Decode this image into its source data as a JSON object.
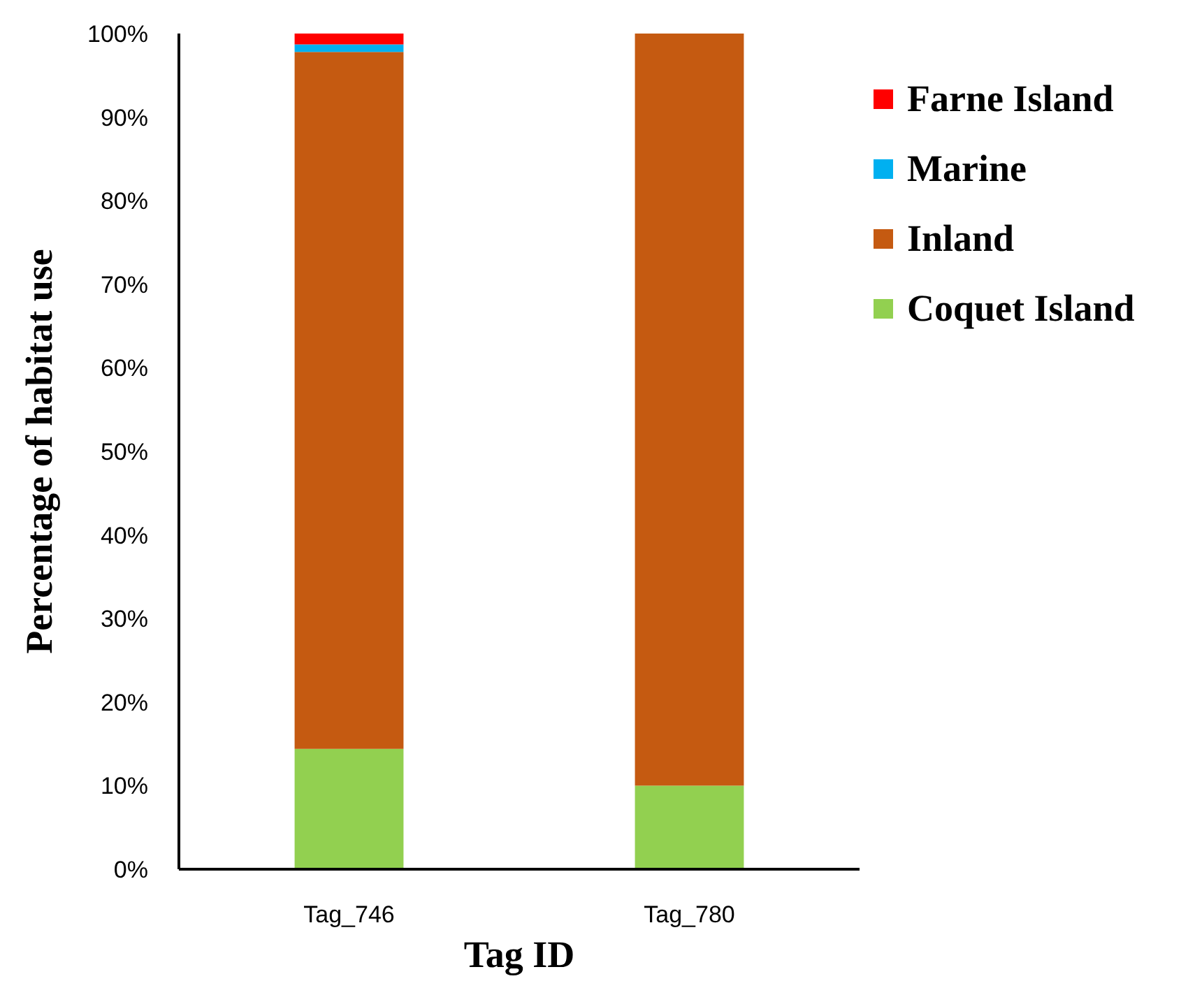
{
  "chart_data": {
    "type": "bar",
    "stacked": true,
    "xlabel": "Tag ID",
    "ylabel": "Percentage of habitat use",
    "categories": [
      "Tag_746",
      "Tag_780"
    ],
    "series": [
      {
        "name": "Coquet Island",
        "color": "#92d050",
        "values": [
          14.4,
          10.0
        ]
      },
      {
        "name": "Inland",
        "color": "#c55a11",
        "values": [
          83.4,
          90.0
        ]
      },
      {
        "name": "Marine",
        "color": "#00b0f0",
        "values": [
          0.9,
          0
        ]
      },
      {
        "name": "Farne Island",
        "color": "#ff0000",
        "values": [
          1.3,
          0
        ]
      }
    ],
    "ylim": [
      0,
      100
    ],
    "yticks": [
      {
        "value": 0,
        "label": "0%"
      },
      {
        "value": 10,
        "label": "10%"
      },
      {
        "value": 20,
        "label": "20%"
      },
      {
        "value": 30,
        "label": "30%"
      },
      {
        "value": 40,
        "label": "40%"
      },
      {
        "value": 50,
        "label": "50%"
      },
      {
        "value": 60,
        "label": "60%"
      },
      {
        "value": 70,
        "label": "70%"
      },
      {
        "value": 80,
        "label": "80%"
      },
      {
        "value": 90,
        "label": "90%"
      },
      {
        "value": 100,
        "label": "100%"
      }
    ],
    "legend": "right"
  }
}
